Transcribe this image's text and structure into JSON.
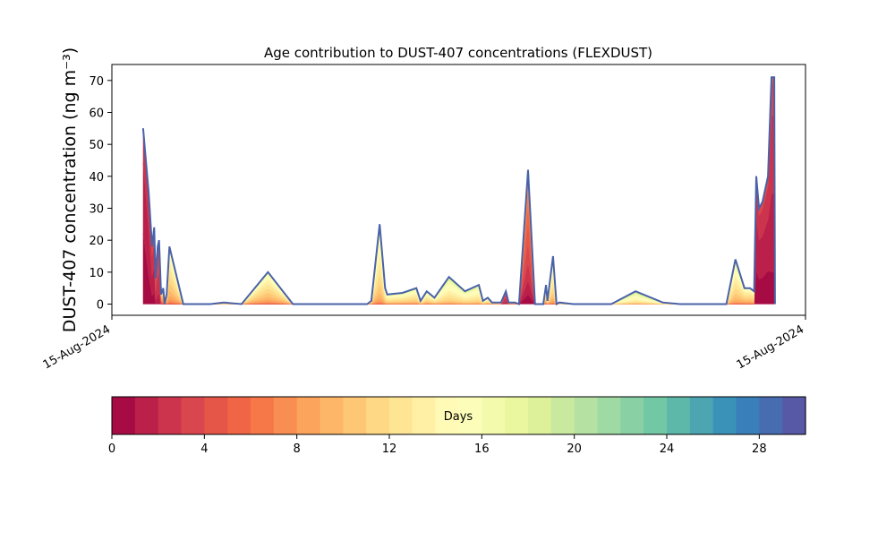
{
  "chart_data": {
    "type": "area",
    "stacked": true,
    "title": "Age contribution to DUST-407 concentrations (FLEXDUST)",
    "ylabel": "DUST-407 concentration (ng m⁻³)",
    "xlabel": "",
    "xlim": [
      0,
      100
    ],
    "ylim": [
      -3.5,
      75
    ],
    "yticks": [
      0,
      10,
      20,
      30,
      40,
      50,
      60,
      70
    ],
    "xtick_labels": [
      "15-Aug-2024",
      "15-Aug-2024"
    ],
    "total": {
      "x": [
        4.5,
        5.3,
        5.8,
        6.1,
        6.3,
        6.6,
        6.8,
        7.1,
        7.4,
        7.6,
        7.9,
        8.3,
        10.3,
        14.2,
        16.1,
        18.7,
        22.5,
        26.1,
        36.8,
        37.4,
        38.6,
        39.4,
        39.7,
        41.9,
        43.9,
        44.5,
        45.4,
        46.5,
        48.6,
        50.9,
        52.9,
        53.5,
        54.2,
        54.8,
        56.1,
        56.8,
        57.2,
        58.1,
        58.7,
        60.0,
        61.0,
        62.2,
        62.6,
        62.8,
        63.6,
        64.1,
        64.5,
        66.5,
        72.0,
        75.5,
        79.4,
        81.9,
        85.2,
        88.6,
        89.9,
        91.2,
        92.0,
        92.6,
        92.9,
        93.3,
        93.8,
        94.6,
        95.1,
        95.5,
        95.6
      ],
      "y": [
        55,
        35,
        18,
        24,
        8,
        18,
        20,
        3,
        5,
        0,
        3,
        18,
        0,
        0,
        0.5,
        0,
        10,
        0,
        0,
        1,
        25,
        5,
        3,
        3.5,
        5,
        1,
        4,
        2,
        8.5,
        4,
        6,
        1,
        2,
        0.5,
        0.5,
        4,
        0.5,
        0.5,
        0,
        42,
        0,
        0,
        6,
        1,
        15,
        0,
        0.5,
        0,
        0,
        4,
        0.5,
        0,
        0,
        0,
        14,
        5,
        5,
        4,
        40,
        30,
        32,
        40,
        71,
        71,
        0
      ]
    },
    "mean_age_days": [
      1,
      1.5,
      2,
      2,
      3,
      3,
      3,
      8,
      10,
      10,
      11,
      12,
      12,
      13,
      14,
      12,
      12,
      12,
      12,
      12,
      13,
      13,
      13,
      13,
      13,
      13,
      13,
      13,
      14,
      14,
      14,
      13,
      13,
      12,
      12,
      3,
      10,
      10,
      10,
      4,
      10,
      10,
      12,
      12,
      13,
      13,
      15,
      15,
      15,
      15,
      15,
      15,
      15,
      15,
      13,
      12,
      12,
      12,
      1.5,
      1.5,
      1.5,
      1.5,
      2,
      2,
      2
    ],
    "colorbar": {
      "label": "Days",
      "range": [
        0,
        30
      ],
      "bins": 30,
      "ticks": [
        "0",
        "4",
        "8",
        "12",
        "16",
        "20",
        "24",
        "28"
      ],
      "colormap": "Spectral"
    }
  }
}
